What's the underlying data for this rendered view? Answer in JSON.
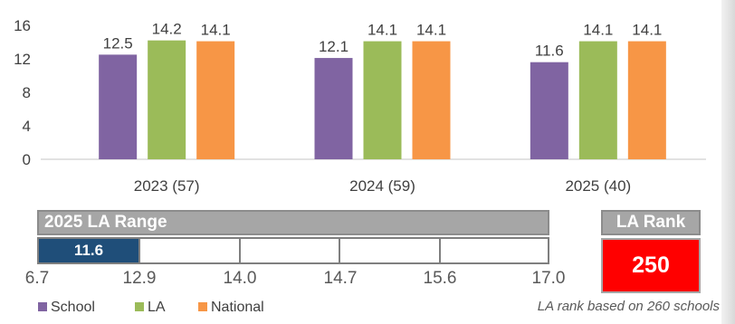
{
  "chart_data": {
    "type": "bar",
    "categories": [
      "2023 (57)",
      "2024 (59)",
      "2025 (40)"
    ],
    "series": [
      {
        "name": "School",
        "values": [
          12.5,
          12.1,
          11.6
        ],
        "color": "#8064a2"
      },
      {
        "name": "LA",
        "values": [
          14.2,
          14.1,
          14.1
        ],
        "color": "#9bbb59"
      },
      {
        "name": "National",
        "values": [
          14.1,
          14.1,
          14.1
        ],
        "color": "#f79646"
      }
    ],
    "ylim": [
      0,
      16
    ],
    "yticks": [
      "0",
      "4",
      "8",
      "12",
      "16"
    ],
    "grid": false,
    "legend_position": "bottom-left"
  },
  "la_range": {
    "title": "2025 LA Range",
    "value_label": "11.6",
    "ticks": [
      "6.7",
      "12.9",
      "14.0",
      "14.7",
      "15.6",
      "17.0"
    ],
    "fill_color": "#1f4e79"
  },
  "la_rank": {
    "title": "LA Rank",
    "value": "250",
    "note": "LA rank based on 260 schools",
    "color": "#ff0000"
  },
  "legend": [
    "School",
    "LA",
    "National"
  ]
}
